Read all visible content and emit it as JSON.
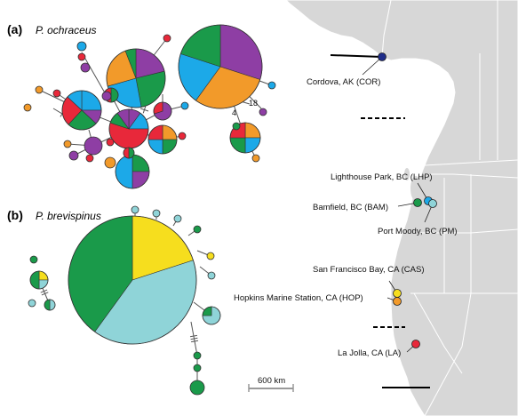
{
  "colors": {
    "green": "#1a9a4a",
    "orange": "#f29a2a",
    "purple": "#8e3ea4",
    "blue": "#1ca9e8",
    "red": "#e8283a",
    "yellow": "#f6de1e",
    "teal": "#8fd4d8",
    "navy": "#1f2d8a",
    "land": "#d7d7d7",
    "border": "#ffffff"
  },
  "panel_a": {
    "letter": "(a)",
    "species": "P. ochraceus",
    "mutation_labels": [
      "18",
      "4"
    ]
  },
  "panel_b": {
    "letter": "(b)",
    "species": "P. brevispinus"
  },
  "sites": [
    {
      "id": "COR",
      "label": "Cordova, AK (COR)",
      "color": "navy"
    },
    {
      "id": "LHP",
      "label": "Lighthouse Park, BC (LHP)",
      "color": "blue"
    },
    {
      "id": "BAM",
      "label": "Bamfield, BC (BAM)",
      "color": "green"
    },
    {
      "id": "PM",
      "label": "Port Moody, BC (PM)",
      "color": "teal"
    },
    {
      "id": "CAS",
      "label": "San Francisco Bay, CA (CAS)",
      "color": "yellow"
    },
    {
      "id": "HOP",
      "label": "Hopkins Marine Station, CA (HOP)",
      "color": "orange"
    },
    {
      "id": "LA",
      "label": "La Jolla, CA (LA)",
      "color": "red"
    }
  ],
  "scale_bar": {
    "label": "600 km"
  }
}
